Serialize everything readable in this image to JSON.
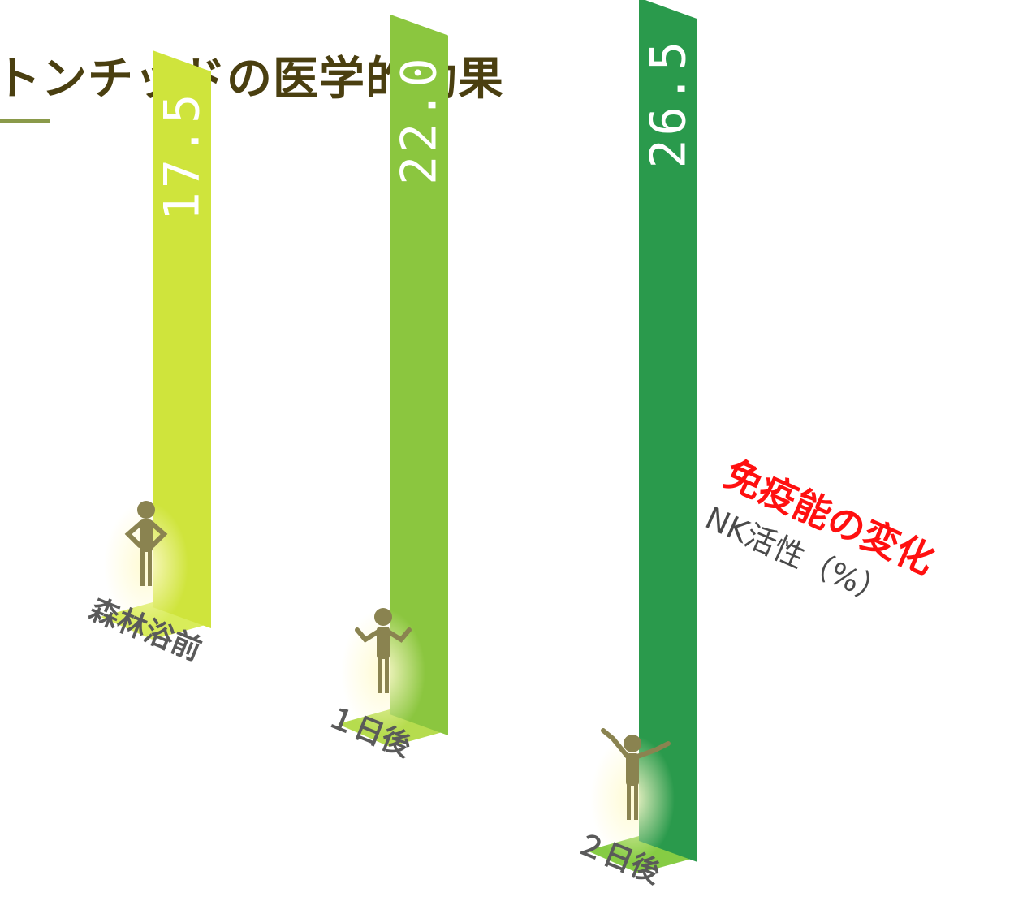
{
  "title": "トンチッドの医学的効果",
  "caption": {
    "main": "免疫能の変化",
    "sub": "NK活性（%）"
  },
  "colors": {
    "bar1": "#cfe43c",
    "bar2": "#8bc63f",
    "bar3": "#2a9a4c",
    "title": "#4a3f10",
    "figure": "#8a8350"
  },
  "icons": [
    "person-standing-icon",
    "person-shrugging-icon",
    "person-cheering-icon"
  ],
  "chart_data": {
    "type": "bar",
    "categories": [
      "森林浴前",
      "１日後",
      "２日後"
    ],
    "values": [
      17.5,
      22.0,
      26.5
    ],
    "value_labels": [
      "17.5",
      "22.0",
      "26.5"
    ],
    "title": "",
    "ylabel": "NK活性（%）"
  }
}
